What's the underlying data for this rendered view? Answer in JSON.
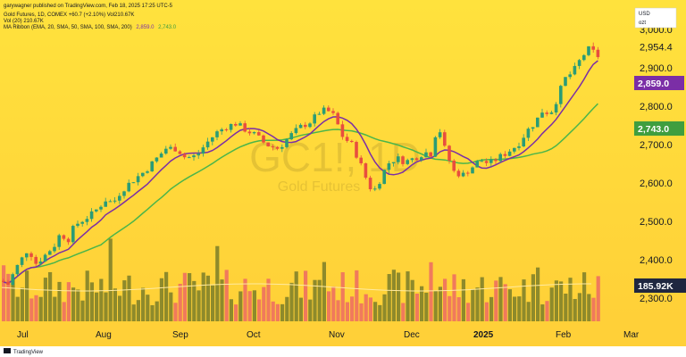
{
  "header": {
    "publisher": "garywagner published on TradingView.com, Feb 18, 2025 17:25 UTC-5",
    "main": "Gold Futures, 1D, COMEX  +60.7 (+2.10%)  Vol210.67K",
    "vol": "Vol (20)  210.67K",
    "ma_label": "MA Ribbon (EMA, 20, SMA, 50, SMA, 100, SMA, 200)",
    "ma_v1": "2,859.0",
    "ma_v2": "2,743.0"
  },
  "footer_brand": "TradingView",
  "watermark": {
    "symbol": "GC1!, 1D",
    "name": "Gold Futures"
  },
  "colors": {
    "bg_top": "#ffe23d",
    "bg_bottom": "#ffd038",
    "up": "#2a9c76",
    "down": "#e84e3e",
    "ema20": "#7b2ea6",
    "sma50": "#4bb54a",
    "vol_up": "#8e8a2b",
    "vol_down": "#f07a5c",
    "vol_ma": "#ffeaa0",
    "badge_ema": "#7b2ea6",
    "badge_sma": "#3f9e3f",
    "badge_vol": "#1f2740"
  },
  "badges": {
    "usd": "USD",
    "oz": "ozt",
    "ema": "2,859.0",
    "sma": "2,743.0",
    "vol": "185.92K"
  },
  "chart_data": {
    "type": "candlestick",
    "title": "Gold Futures",
    "symbol": "GC1!",
    "interval": "1D",
    "yticks": [
      "3,000.0",
      "2,954.4",
      "2,900.0",
      "2,800.0",
      "2,700.0",
      "2,600.0",
      "2,500.0",
      "2,400.0",
      "2,300.0"
    ],
    "ylim": [
      2260,
      3020
    ],
    "months": [
      "Jul",
      "Aug",
      "Sep",
      "Oct",
      "Nov",
      "Dec",
      "2025",
      "Feb",
      "Mar"
    ],
    "last_price": 2954.4,
    "ema20_last": 2859.0,
    "sma50_last": 2743.0,
    "volume_last": "185.92K"
  }
}
